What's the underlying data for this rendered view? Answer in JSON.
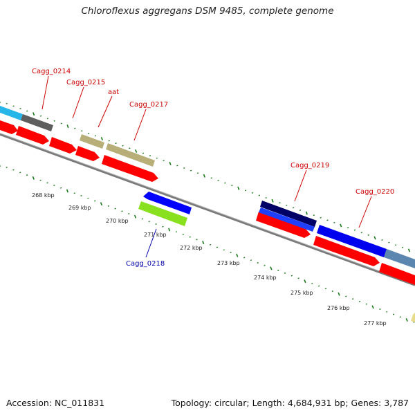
{
  "title": "Chloroflexus aggregans DSM 9485, complete genome",
  "footer": {
    "accession": "Accession: NC_011831",
    "summary": "Topology: circular; Length: 4,684,931 bp; Genes: 3,787"
  },
  "colors": {
    "backbone": "#808080",
    "ticks": "#1a7a1a",
    "forward_cds": "#ff0000",
    "reverse_cds": "#0000ff",
    "label_forward": "#cc0000",
    "label_reverse": "#0000aa"
  },
  "scale_labels": [
    "268 kbp",
    "269 kbp",
    "270 kbp",
    "271 kbp",
    "272 kbp",
    "273 kbp",
    "274 kbp",
    "275 kbp",
    "276 kbp",
    "277 kbp"
  ],
  "gene_labels": [
    {
      "name": "Cagg_0214",
      "strand": "forward"
    },
    {
      "name": "Cagg_0215",
      "strand": "forward"
    },
    {
      "name": "aat",
      "strand": "forward"
    },
    {
      "name": "Cagg_0217",
      "strand": "forward"
    },
    {
      "name": "Cagg_0219",
      "strand": "forward"
    },
    {
      "name": "Cagg_0220",
      "strand": "forward"
    },
    {
      "name": "Cagg_0218",
      "strand": "reverse"
    }
  ]
}
